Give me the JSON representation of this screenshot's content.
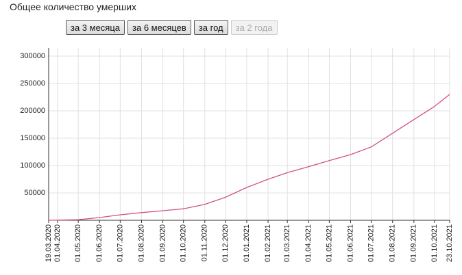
{
  "chart_data": {
    "type": "line",
    "title": "Общее количество умерших",
    "x": [
      "19.03.2020",
      "01.05.2020",
      "01.06.2020",
      "01.07.2020",
      "01.08.2020",
      "01.09.2020",
      "01.10.2020",
      "01.11.2020",
      "01.12.2020",
      "01.01.2021",
      "01.02.2021",
      "01.03.2021",
      "01.04.2021",
      "01.05.2021",
      "01.06.2021",
      "01.07.2021",
      "01.08.2021",
      "01.09.2021",
      "01.10.2021",
      "23.10.2021"
    ],
    "series": [
      {
        "color": "#d0508a",
        "values": [
          0,
          1000,
          5000,
          10000,
          14000,
          17500,
          21000,
          29000,
          42000,
          60000,
          75000,
          87000,
          98000,
          109000,
          120000,
          134000,
          159000,
          184000,
          208000,
          230000
        ]
      }
    ],
    "xlim": [
      "19.03.2020",
      "23.10.2021"
    ],
    "xticks": [
      "19.03.2020",
      "01.04.2020",
      "01.05.2020",
      "01.06.2020",
      "01.07.2020",
      "01.08.2020",
      "01.09.2020",
      "01.10.2020",
      "01.11.2020",
      "01.12.2020",
      "01.01.2021",
      "01.02.2021",
      "01.03.2021",
      "01.04.2021",
      "01.05.2021",
      "01.06.2021",
      "01.07.2021",
      "01.08.2021",
      "01.09.2021",
      "01.10.2021",
      "23.10.2021"
    ],
    "ylim": [
      0,
      300000
    ],
    "yticks": [
      50000,
      100000,
      150000,
      200000,
      250000,
      300000
    ],
    "grid": true
  },
  "buttons": [
    {
      "label": "за 3 месяца",
      "enabled": true
    },
    {
      "label": "за 6 месяцев",
      "enabled": true
    },
    {
      "label": "за год",
      "enabled": true
    },
    {
      "label": "за 2 года",
      "enabled": false
    }
  ]
}
